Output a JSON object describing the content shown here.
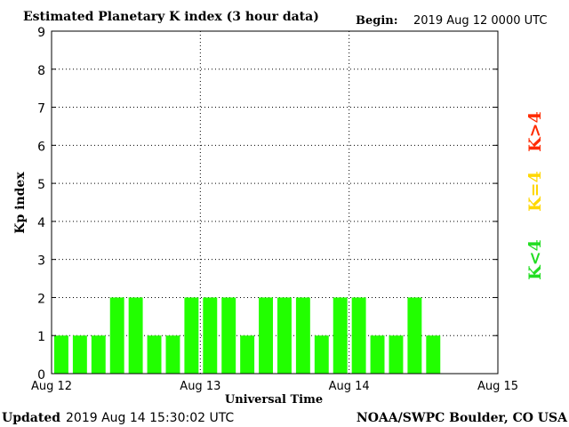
{
  "chart_data": {
    "type": "bar",
    "title": "Estimated Planetary K index (3 hour data)",
    "begin_label": "Begin:",
    "begin_value": "2019 Aug 12 0000 UTC",
    "xlabel": "Universal Time",
    "ylabel": "Kp index",
    "ylim": [
      0,
      9
    ],
    "y_ticks": [
      "0",
      "1",
      "2",
      "3",
      "4",
      "5",
      "6",
      "7",
      "8",
      "9"
    ],
    "x_ticks": [
      "Aug 12",
      "Aug 13",
      "Aug 14",
      "Aug 15"
    ],
    "bars_per_day": 8,
    "day_count": 3,
    "values": [
      1,
      1,
      1,
      2,
      2,
      1,
      1,
      2,
      2,
      2,
      1,
      2,
      2,
      2,
      1,
      2,
      2,
      1,
      1,
      2,
      1
    ],
    "grid": true,
    "legend": [
      {
        "label": "K<4",
        "color": "#22dd22"
      },
      {
        "label": "K=4",
        "color": "#ffd700"
      },
      {
        "label": "K>4",
        "color": "#ff2a00"
      }
    ],
    "bar_color": "#22ff00"
  },
  "footer": {
    "updated_label": "Updated",
    "updated_value": "2019 Aug 14 15:30:02 UTC",
    "source": "NOAA/SWPC Boulder, CO USA"
  }
}
